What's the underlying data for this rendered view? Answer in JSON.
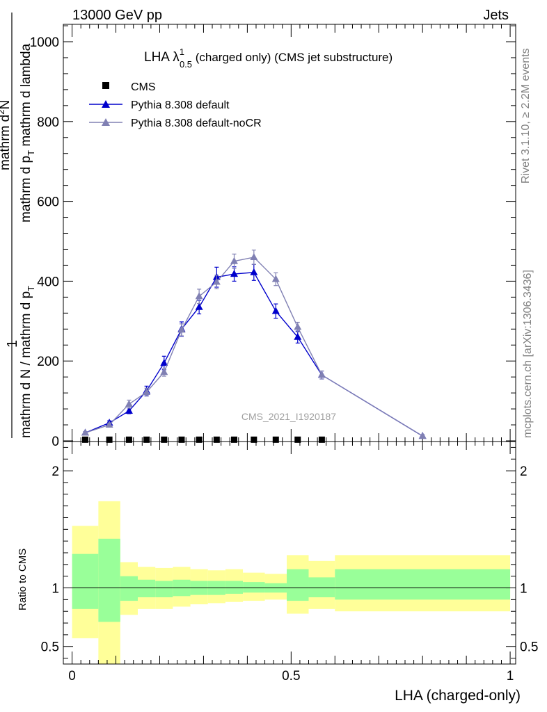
{
  "header": {
    "left": "13000 GeV pp",
    "right": "Jets"
  },
  "side_labels": {
    "rivet": "Rivet 3.1.10, ≥ 2.2M events",
    "mcplots": "mcplots.cern.ch [arXiv:1306.3436]"
  },
  "plot_title": {
    "main": "LHA λ",
    "superscript": "1",
    "subscript": "0.5",
    "rest": " (charged only) (CMS jet substructure)"
  },
  "watermark": "CMS_2021_I1920187",
  "ratio_ylabel": "Ratio to CMS",
  "ylabel": {
    "numerator": "1",
    "denominator": "mathrm d N / mathrm d p",
    "denominator_sub": "T",
    "numerator2": "mathrm d",
    "numerator2_sup": "2",
    "numerator2_rest": "N",
    "denominator2": "mathrm d p",
    "denominator2_sub": "T",
    "denominator2_rest": " mathrm d lambda"
  },
  "chart_data": {
    "type": "line",
    "xlabel": "LHA (charged-only)",
    "xlim": [
      0,
      1
    ],
    "ylim": [
      0,
      1050
    ],
    "x_ticks": [
      {
        "value": 0,
        "label": "0"
      },
      {
        "value": 0.5,
        "label": "0.5"
      },
      {
        "value": 1,
        "label": "1"
      }
    ],
    "y_ticks": [
      {
        "value": 0,
        "label": "0"
      },
      {
        "value": 200,
        "label": "200"
      },
      {
        "value": 400,
        "label": "400"
      },
      {
        "value": 600,
        "label": "600"
      },
      {
        "value": 800,
        "label": "800"
      },
      {
        "value": 1000,
        "label": "1000"
      }
    ],
    "legend_position": "top-left",
    "series": [
      {
        "name": "CMS",
        "color": "#000000",
        "marker": "square",
        "x": [
          0.03,
          0.085,
          0.13,
          0.17,
          0.21,
          0.25,
          0.29,
          0.33,
          0.37,
          0.415,
          0.465,
          0.515,
          0.57
        ],
        "y": [
          2,
          2,
          2,
          2,
          2,
          2,
          2,
          2,
          2,
          2,
          2,
          2,
          2
        ]
      },
      {
        "name": "Pythia 8.308 default",
        "color": "#0000cc",
        "marker": "triangle",
        "x": [
          0.03,
          0.085,
          0.13,
          0.17,
          0.21,
          0.25,
          0.29,
          0.33,
          0.37,
          0.415,
          0.465,
          0.515,
          0.57,
          0.8
        ],
        "y": [
          20,
          45,
          75,
          125,
          195,
          280,
          335,
          410,
          418,
          422,
          325,
          260,
          165,
          12
        ],
        "err": [
          3,
          5,
          7,
          12,
          17,
          18,
          17,
          25,
          18,
          20,
          18,
          15,
          10,
          3
        ]
      },
      {
        "name": "Pythia 8.308 default-noCR",
        "color": "#8080b3",
        "marker": "triangle",
        "x": [
          0.03,
          0.085,
          0.13,
          0.17,
          0.21,
          0.25,
          0.29,
          0.33,
          0.37,
          0.415,
          0.465,
          0.515,
          0.57,
          0.8
        ],
        "y": [
          20,
          40,
          92,
          122,
          172,
          278,
          362,
          398,
          450,
          460,
          405,
          285,
          165,
          12
        ],
        "err": [
          3,
          4,
          10,
          10,
          10,
          15,
          18,
          17,
          18,
          18,
          16,
          12,
          10,
          3
        ]
      }
    ],
    "ratio": {
      "ylim": [
        0.35,
        2.25
      ],
      "y_ticks": [
        {
          "value": 0.5,
          "label": "0.5"
        },
        {
          "value": 1,
          "label": "1"
        },
        {
          "value": 2,
          "label": "2"
        }
      ],
      "bands": [
        {
          "x0": 0.0,
          "x1": 0.06,
          "yellow": [
            0.57,
            1.53
          ],
          "green": [
            0.82,
            1.29
          ]
        },
        {
          "x0": 0.06,
          "x1": 0.11,
          "yellow": [
            0.35,
            1.74
          ],
          "green": [
            0.71,
            1.42
          ]
        },
        {
          "x0": 0.11,
          "x1": 0.15,
          "yellow": [
            0.77,
            1.22
          ],
          "green": [
            0.89,
            1.1
          ]
        },
        {
          "x0": 0.15,
          "x1": 0.19,
          "yellow": [
            0.82,
            1.18
          ],
          "green": [
            0.92,
            1.07
          ]
        },
        {
          "x0": 0.19,
          "x1": 0.23,
          "yellow": [
            0.82,
            1.17
          ],
          "green": [
            0.92,
            1.06
          ]
        },
        {
          "x0": 0.23,
          "x1": 0.27,
          "yellow": [
            0.84,
            1.18
          ],
          "green": [
            0.93,
            1.07
          ]
        },
        {
          "x0": 0.27,
          "x1": 0.31,
          "yellow": [
            0.86,
            1.16
          ],
          "green": [
            0.94,
            1.06
          ]
        },
        {
          "x0": 0.31,
          "x1": 0.35,
          "yellow": [
            0.87,
            1.15
          ],
          "green": [
            0.94,
            1.06
          ]
        },
        {
          "x0": 0.35,
          "x1": 0.39,
          "yellow": [
            0.88,
            1.16
          ],
          "green": [
            0.95,
            1.06
          ]
        },
        {
          "x0": 0.39,
          "x1": 0.44,
          "yellow": [
            0.89,
            1.13
          ],
          "green": [
            0.96,
            1.05
          ]
        },
        {
          "x0": 0.44,
          "x1": 0.49,
          "yellow": [
            0.9,
            1.12
          ],
          "green": [
            0.96,
            1.04
          ]
        },
        {
          "x0": 0.49,
          "x1": 0.54,
          "yellow": [
            0.78,
            1.28
          ],
          "green": [
            0.89,
            1.16
          ]
        },
        {
          "x0": 0.54,
          "x1": 0.6,
          "yellow": [
            0.82,
            1.23
          ],
          "green": [
            0.92,
            1.09
          ]
        },
        {
          "x0": 0.6,
          "x1": 1.0,
          "yellow": [
            0.8,
            1.28
          ],
          "green": [
            0.9,
            1.16
          ]
        }
      ]
    }
  }
}
